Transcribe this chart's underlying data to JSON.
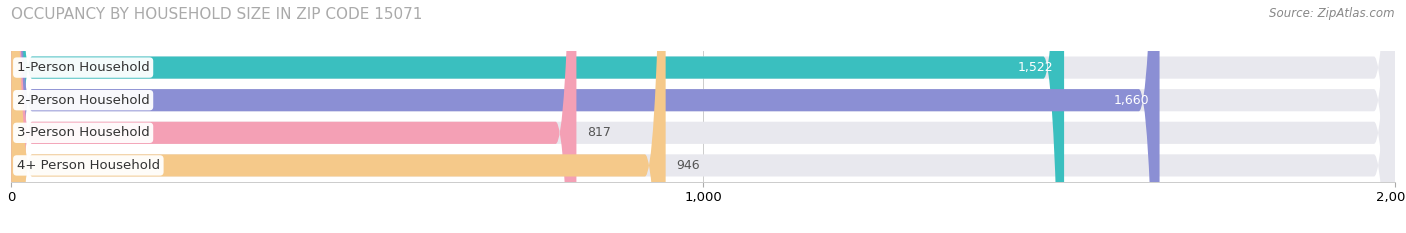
{
  "title": "OCCUPANCY BY HOUSEHOLD SIZE IN ZIP CODE 15071",
  "source": "Source: ZipAtlas.com",
  "categories": [
    "1-Person Household",
    "2-Person Household",
    "3-Person Household",
    "4+ Person Household"
  ],
  "values": [
    1522,
    1660,
    817,
    946
  ],
  "bar_colors": [
    "#3abfbf",
    "#8b8fd4",
    "#f4a0b5",
    "#f5c98a"
  ],
  "bar_bg_color": "#e8e8ee",
  "background_color": "#ffffff",
  "xlim": [
    0,
    2000
  ],
  "xticks": [
    0,
    1000,
    2000
  ],
  "title_fontsize": 11,
  "label_fontsize": 9.5,
  "value_fontsize": 9,
  "source_fontsize": 8.5,
  "bar_height": 0.68,
  "value_colors": [
    "#ffffff",
    "#ffffff",
    "#444444",
    "#444444"
  ]
}
